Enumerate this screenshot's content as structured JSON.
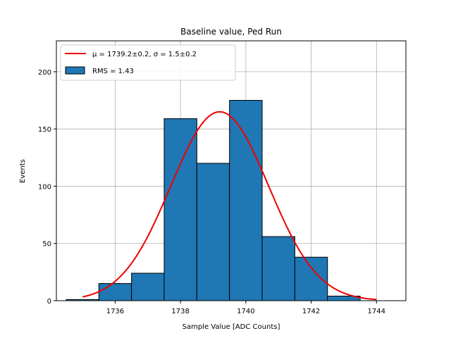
{
  "chart_data": {
    "type": "bar",
    "title": "Baseline value, Ped Run",
    "xlabel": "Sample Value [ADC Counts]",
    "ylabel": "Events",
    "xlim": [
      1734.2,
      1744.9
    ],
    "ylim": [
      0,
      227
    ],
    "grid": true,
    "legend_position": "top-left",
    "x_ticks": [
      1736,
      1738,
      1740,
      1742,
      1744
    ],
    "y_ticks": [
      0,
      50,
      100,
      150,
      200
    ],
    "bins": [
      {
        "left": 1734.5,
        "right": 1735.5,
        "value": 1
      },
      {
        "left": 1735.5,
        "right": 1736.5,
        "value": 15
      },
      {
        "left": 1736.5,
        "right": 1737.5,
        "value": 24
      },
      {
        "left": 1737.5,
        "right": 1738.5,
        "value": 159
      },
      {
        "left": 1738.5,
        "right": 1739.5,
        "value": 120
      },
      {
        "left": 1739.5,
        "right": 1740.5,
        "value": 175
      },
      {
        "left": 1740.5,
        "right": 1741.5,
        "value": 56
      },
      {
        "left": 1741.5,
        "right": 1742.5,
        "value": 38
      },
      {
        "left": 1742.5,
        "right": 1743.5,
        "value": 4
      }
    ],
    "fit": {
      "mu": 1739.2,
      "sigma": 1.5,
      "amplitude": 165,
      "x_range": [
        1735.0,
        1744.0
      ]
    },
    "legend": [
      {
        "label": "μ = 1739.2±0.2, σ = 1.5±0.2",
        "kind": "line",
        "color": "#ee0000"
      },
      {
        "label": "RMS = 1.43",
        "kind": "patch",
        "color": "#1f77b4"
      }
    ],
    "colors": {
      "bar_fill": "#1f77b4",
      "bar_edge": "#000000",
      "fit_line": "#ee0000",
      "grid": "#b0b0b0"
    }
  }
}
